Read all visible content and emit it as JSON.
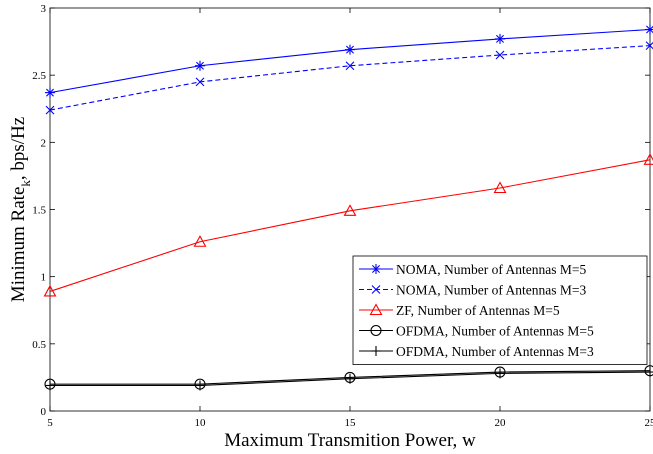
{
  "chart_data": {
    "type": "line",
    "title": "",
    "xlabel": "Maximum Transmition Power, w",
    "ylabel": {
      "main": "Minimum Rate",
      "subscript": "k",
      "suffix": ", bps/Hz"
    },
    "xlim": [
      5,
      25
    ],
    "ylim": [
      0,
      3
    ],
    "xticks": [
      5,
      10,
      15,
      20,
      25
    ],
    "yticks": [
      0,
      0.5,
      1,
      1.5,
      2,
      2.5,
      3
    ],
    "grid": false,
    "legend_position": "lower-right",
    "x": [
      5,
      10,
      15,
      20,
      25
    ],
    "series": [
      {
        "name": "NOMA, Number of Antennas M=5",
        "values": [
          2.37,
          2.57,
          2.69,
          2.77,
          2.84
        ],
        "color": "#0000ff",
        "dash": "solid",
        "marker": "asterisk"
      },
      {
        "name": "NOMA, Number of Antennas M=3",
        "values": [
          2.24,
          2.45,
          2.57,
          2.65,
          2.72
        ],
        "color": "#0000ff",
        "dash": "dashed",
        "marker": "x"
      },
      {
        "name": "ZF, Number of Antennas M=5",
        "values": [
          0.89,
          1.26,
          1.49,
          1.66,
          1.87
        ],
        "color": "#ff0000",
        "dash": "solid",
        "marker": "triangle"
      },
      {
        "name": "OFDMA, Number of Antennas M=5",
        "values": [
          0.2,
          0.2,
          0.25,
          0.29,
          0.3
        ],
        "color": "#000000",
        "dash": "solid",
        "marker": "circle"
      },
      {
        "name": "OFDMA, Number of Antennas M=3",
        "values": [
          0.19,
          0.19,
          0.24,
          0.28,
          0.29
        ],
        "color": "#000000",
        "dash": "solid",
        "marker": "plus"
      }
    ]
  }
}
